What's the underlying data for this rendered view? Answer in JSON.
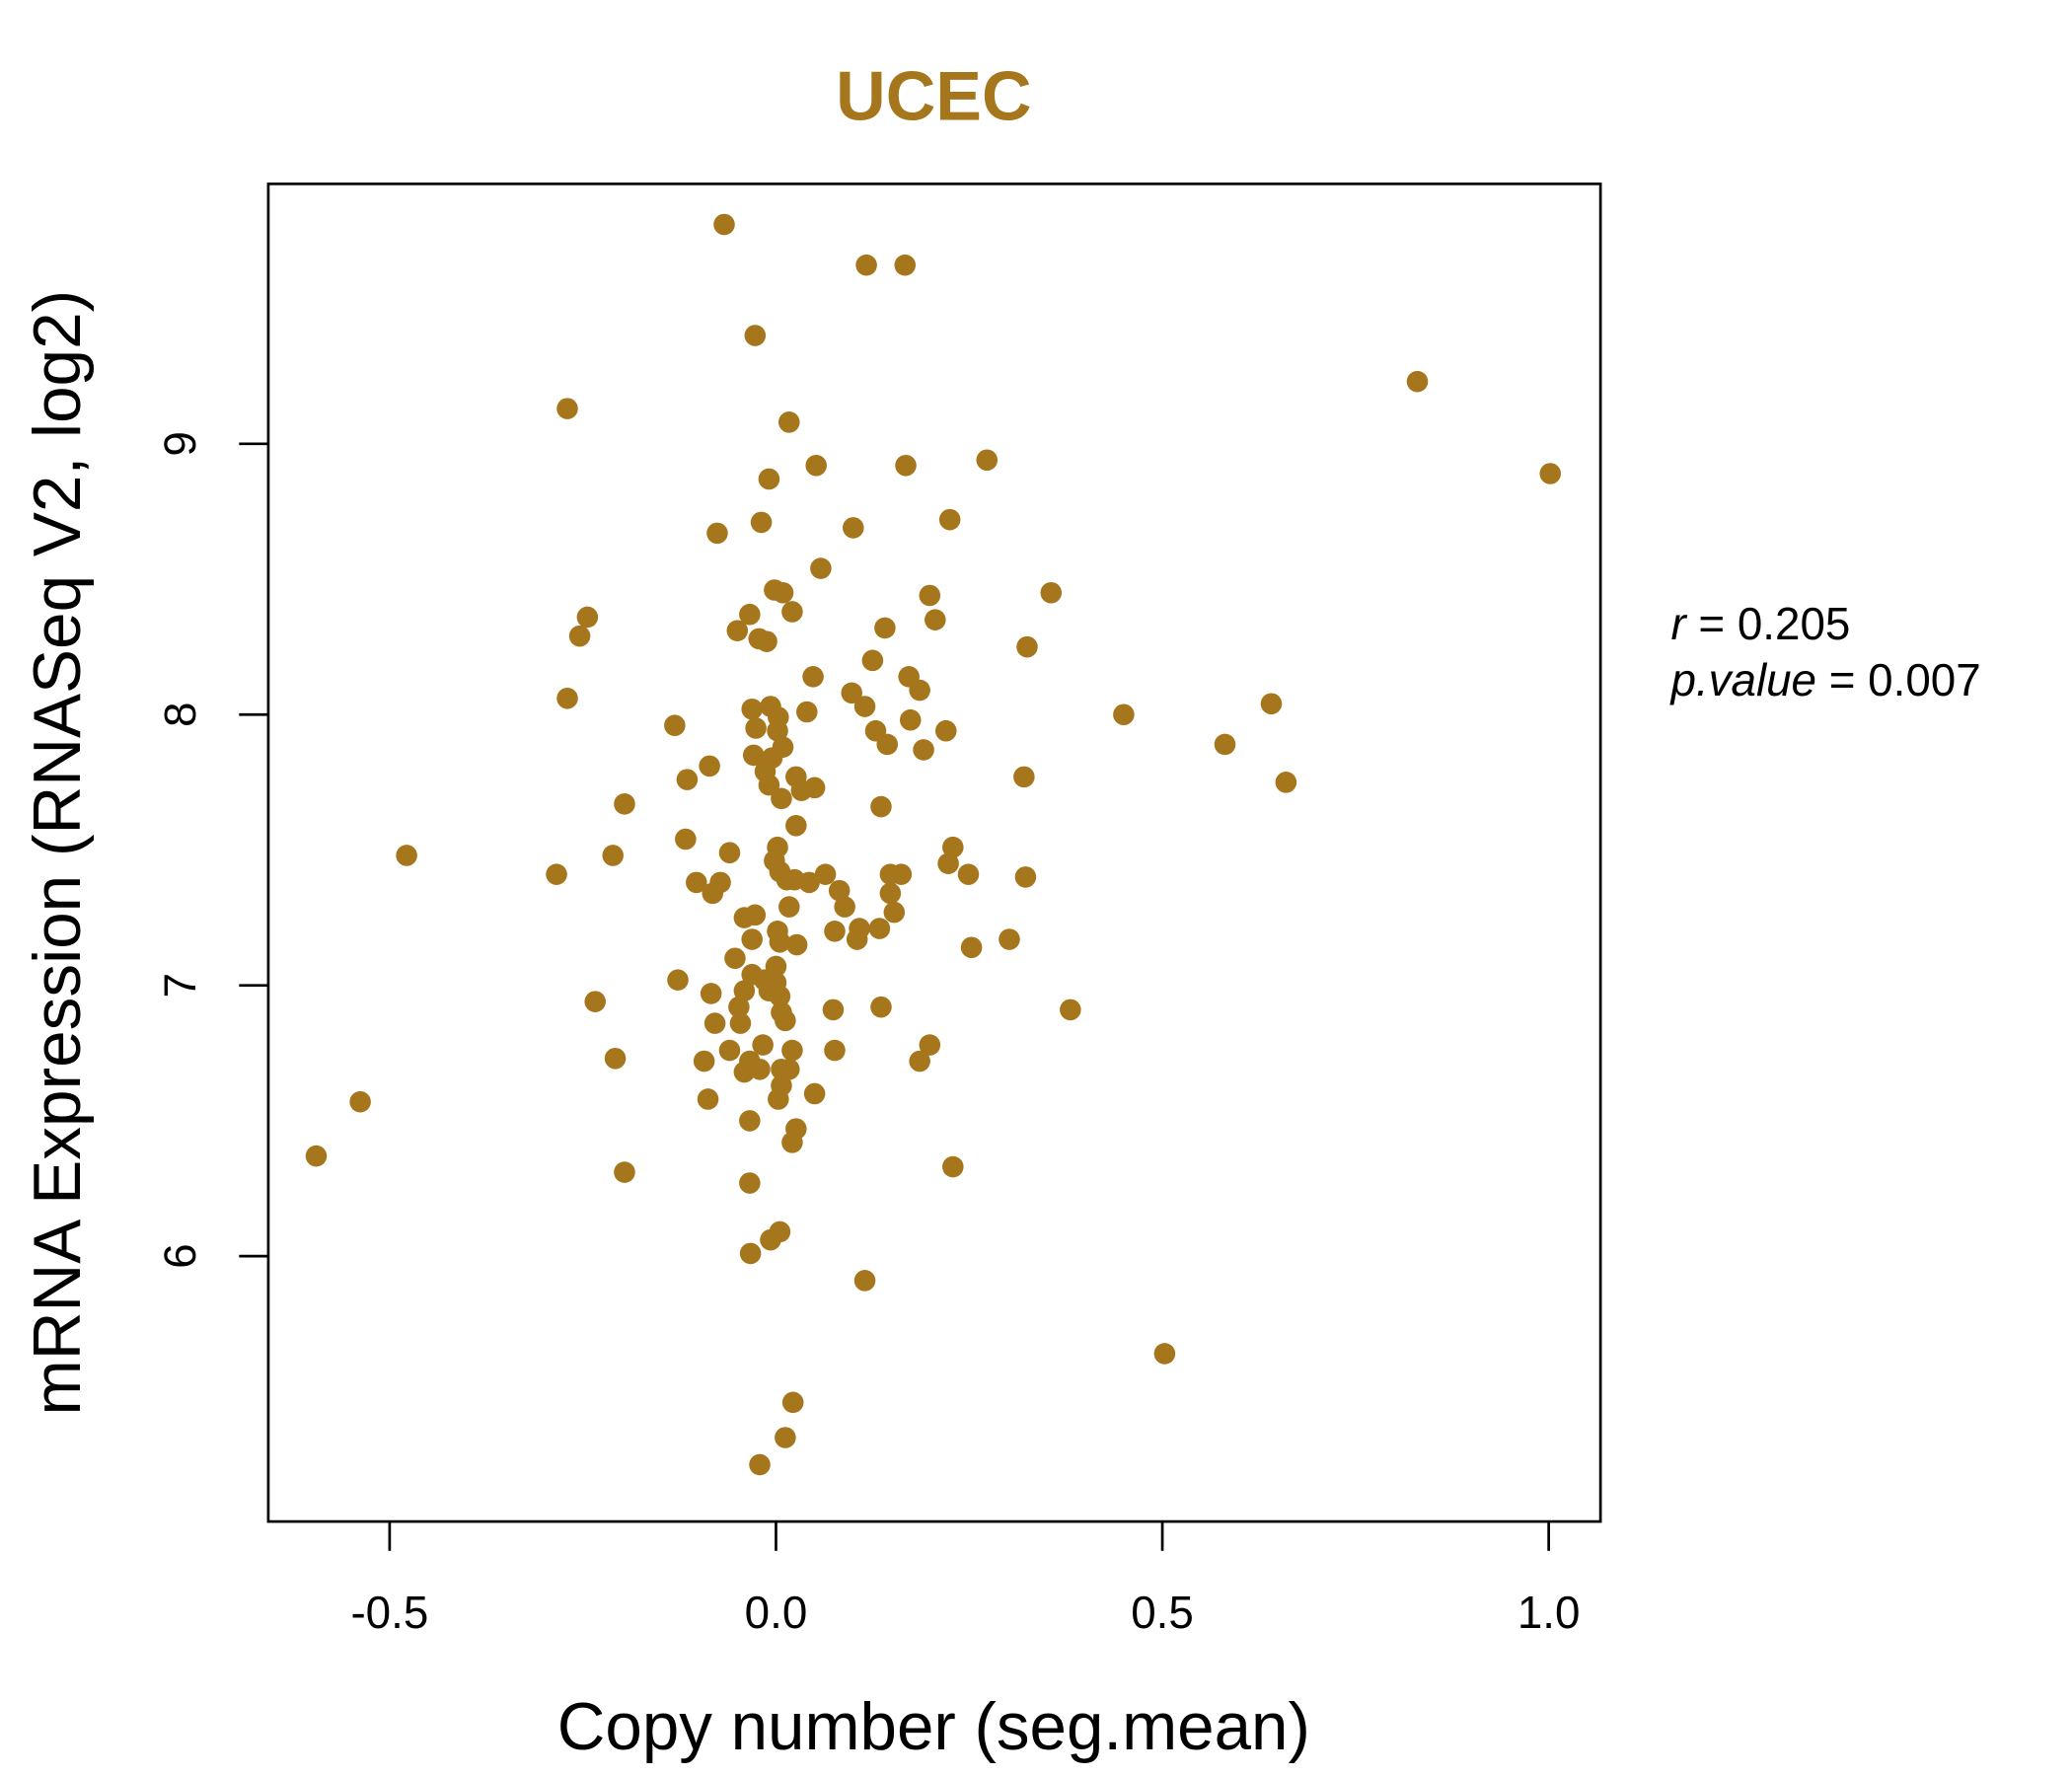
{
  "chart_data": {
    "type": "scatter",
    "title": "UCEC",
    "xlabel": "Copy number (seg.mean)",
    "ylabel": "mRNA Expression (RNASeq V2, log2)",
    "xlim": [
      -0.657,
      1.067
    ],
    "ylim": [
      5.02,
      9.96
    ],
    "xticks": [
      -0.5,
      0.0,
      0.5,
      1.0
    ],
    "xtick_labels": [
      "-0.5",
      "0.0",
      "0.5",
      "1.0"
    ],
    "yticks": [
      6,
      7,
      8,
      9
    ],
    "ytick_labels": [
      "6",
      "7",
      "8",
      "9"
    ],
    "grid": false,
    "color": "#A6761D",
    "stats": {
      "r_label": "r",
      "r_value": "0.205",
      "p_label": "p.value",
      "p_value": "0.007"
    },
    "points": [
      [
        -0.067,
        9.81
      ],
      [
        0.117,
        9.66
      ],
      [
        0.167,
        9.66
      ],
      [
        -0.027,
        9.4
      ],
      [
        0.83,
        9.23
      ],
      [
        -0.27,
        9.13
      ],
      [
        0.017,
        9.08
      ],
      [
        0.273,
        8.94
      ],
      [
        0.052,
        8.92
      ],
      [
        0.168,
        8.92
      ],
      [
        -0.009,
        8.87
      ],
      [
        1.002,
        8.89
      ],
      [
        -0.019,
        8.71
      ],
      [
        0.225,
        8.72
      ],
      [
        0.1,
        8.69
      ],
      [
        -0.076,
        8.67
      ],
      [
        0.058,
        8.54
      ],
      [
        -0.002,
        8.46
      ],
      [
        0.009,
        8.45
      ],
      [
        0.356,
        8.45
      ],
      [
        0.199,
        8.44
      ],
      [
        -0.244,
        8.36
      ],
      [
        -0.034,
        8.37
      ],
      [
        0.021,
        8.38
      ],
      [
        0.206,
        8.35
      ],
      [
        -0.05,
        8.31
      ],
      [
        0.141,
        8.32
      ],
      [
        -0.254,
        8.29
      ],
      [
        -0.022,
        8.28
      ],
      [
        -0.012,
        8.27
      ],
      [
        0.325,
        8.25
      ],
      [
        0.125,
        8.2
      ],
      [
        0.048,
        8.14
      ],
      [
        0.172,
        8.14
      ],
      [
        0.186,
        8.09
      ],
      [
        0.098,
        8.08
      ],
      [
        -0.27,
        8.06
      ],
      [
        0.641,
        8.04
      ],
      [
        0.115,
        8.03
      ],
      [
        -0.031,
        8.02
      ],
      [
        -0.007,
        8.03
      ],
      [
        0.04,
        8.01
      ],
      [
        0.45,
        8.0
      ],
      [
        0.003,
        7.99
      ],
      [
        0.174,
        7.98
      ],
      [
        -0.131,
        7.96
      ],
      [
        -0.026,
        7.95
      ],
      [
        0.129,
        7.94
      ],
      [
        0.22,
        7.94
      ],
      [
        0.002,
        7.94
      ],
      [
        0.144,
        7.89
      ],
      [
        0.581,
        7.89
      ],
      [
        0.009,
        7.88
      ],
      [
        0.191,
        7.87
      ],
      [
        -0.029,
        7.85
      ],
      [
        -0.005,
        7.84
      ],
      [
        -0.086,
        7.81
      ],
      [
        -0.014,
        7.79
      ],
      [
        0.026,
        7.77
      ],
      [
        0.321,
        7.77
      ],
      [
        -0.115,
        7.76
      ],
      [
        -0.009,
        7.74
      ],
      [
        0.05,
        7.73
      ],
      [
        0.033,
        7.72
      ],
      [
        0.66,
        7.75
      ],
      [
        0.007,
        7.69
      ],
      [
        -0.196,
        7.67
      ],
      [
        0.136,
        7.66
      ],
      [
        0.026,
        7.59
      ],
      [
        -0.117,
        7.54
      ],
      [
        0.229,
        7.51
      ],
      [
        0.002,
        7.51
      ],
      [
        -0.06,
        7.49
      ],
      [
        -0.478,
        7.48
      ],
      [
        -0.211,
        7.48
      ],
      [
        0.223,
        7.45
      ],
      [
        -0.002,
        7.46
      ],
      [
        0.005,
        7.42
      ],
      [
        -0.284,
        7.41
      ],
      [
        0.064,
        7.41
      ],
      [
        0.148,
        7.41
      ],
      [
        0.162,
        7.41
      ],
      [
        0.249,
        7.41
      ],
      [
        0.323,
        7.4
      ],
      [
        -0.103,
        7.38
      ],
      [
        -0.072,
        7.38
      ],
      [
        0.024,
        7.39
      ],
      [
        0.043,
        7.38
      ],
      [
        0.014,
        7.39
      ],
      [
        -0.082,
        7.34
      ],
      [
        0.082,
        7.35
      ],
      [
        0.148,
        7.34
      ],
      [
        0.089,
        7.29
      ],
      [
        0.017,
        7.29
      ],
      [
        0.153,
        7.27
      ],
      [
        -0.041,
        7.25
      ],
      [
        -0.027,
        7.26
      ],
      [
        0.108,
        7.21
      ],
      [
        0.134,
        7.21
      ],
      [
        0.076,
        7.2
      ],
      [
        0.002,
        7.2
      ],
      [
        -0.031,
        7.17
      ],
      [
        0.105,
        7.17
      ],
      [
        0.302,
        7.17
      ],
      [
        0.005,
        7.16
      ],
      [
        0.027,
        7.15
      ],
      [
        0.253,
        7.14
      ],
      [
        -0.053,
        7.1
      ],
      [
        0.0,
        7.07
      ],
      [
        -0.127,
        7.02
      ],
      [
        -0.031,
        7.04
      ],
      [
        -0.015,
        7.02
      ],
      [
        0.0,
        7.01
      ],
      [
        -0.009,
        6.98
      ],
      [
        0.005,
        6.96
      ],
      [
        -0.084,
        6.97
      ],
      [
        -0.041,
        6.98
      ],
      [
        -0.048,
        6.92
      ],
      [
        0.074,
        6.91
      ],
      [
        0.136,
        6.92
      ],
      [
        0.381,
        6.91
      ],
      [
        0.007,
        6.9
      ],
      [
        0.012,
        6.87
      ],
      [
        -0.079,
        6.86
      ],
      [
        -0.046,
        6.86
      ],
      [
        -0.06,
        6.76
      ],
      [
        -0.017,
        6.78
      ],
      [
        0.021,
        6.76
      ],
      [
        0.076,
        6.76
      ],
      [
        0.199,
        6.78
      ],
      [
        -0.093,
        6.72
      ],
      [
        -0.034,
        6.72
      ],
      [
        0.186,
        6.72
      ],
      [
        -0.041,
        6.68
      ],
      [
        -0.021,
        6.69
      ],
      [
        0.007,
        6.69
      ],
      [
        0.017,
        6.69
      ],
      [
        0.007,
        6.63
      ],
      [
        0.05,
        6.6
      ],
      [
        -0.088,
        6.58
      ],
      [
        -0.538,
        6.57
      ],
      [
        0.003,
        6.58
      ],
      [
        -0.034,
        6.5
      ],
      [
        0.026,
        6.47
      ],
      [
        0.021,
        6.42
      ],
      [
        -0.595,
        6.37
      ],
      [
        0.229,
        6.33
      ],
      [
        -0.196,
        6.31
      ],
      [
        -0.034,
        6.27
      ],
      [
        0.005,
        6.09
      ],
      [
        -0.007,
        6.06
      ],
      [
        -0.033,
        6.01
      ],
      [
        -0.234,
        6.94
      ],
      [
        -0.208,
        6.73
      ],
      [
        0.115,
        5.91
      ],
      [
        0.503,
        5.64
      ],
      [
        0.022,
        5.46
      ],
      [
        0.012,
        5.33
      ],
      [
        -0.021,
        5.23
      ]
    ]
  }
}
